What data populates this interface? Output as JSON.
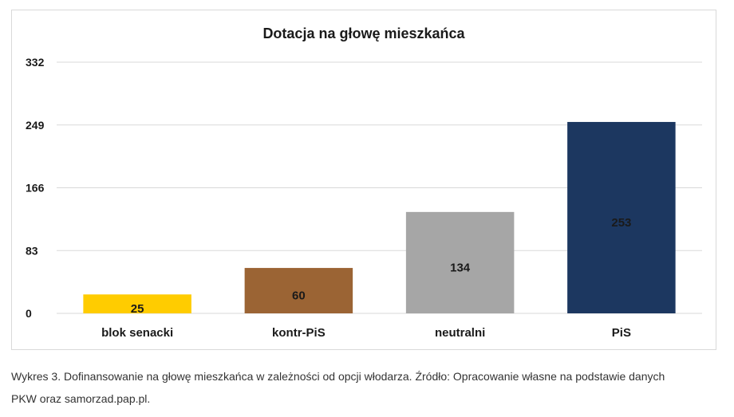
{
  "chart_data": {
    "type": "bar",
    "title": "Dotacja na głowę mieszkańca",
    "xlabel": "",
    "ylabel": "",
    "categories": [
      "blok senacki",
      "kontr-PiS",
      "neutralni",
      "PiS"
    ],
    "values": [
      25,
      60,
      134,
      253
    ],
    "data_labels": [
      "25",
      "60",
      "134",
      "253"
    ],
    "bar_colors": [
      "#ffcc00",
      "#9b6434",
      "#a6a6a6",
      "#1c3760"
    ],
    "y_ticks": [
      0,
      83,
      166,
      249,
      332
    ],
    "ylim": [
      0,
      332
    ],
    "grid": true,
    "legend": "none"
  },
  "caption": {
    "line1": "Wykres 3. Dofinansowanie na głowę mieszkańca w zależności od opcji włodarza. Źródło: Opracowanie własne na podstawie danych",
    "line2": "PKW oraz samorzad.pap.pl."
  }
}
